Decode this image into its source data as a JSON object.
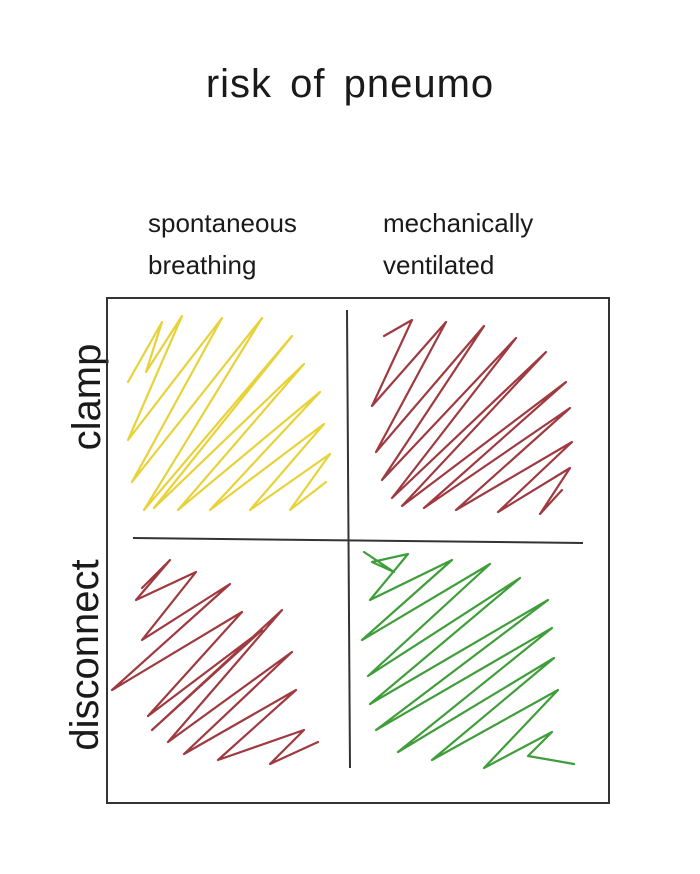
{
  "title": "risk of pneumo",
  "columns": [
    {
      "label": "spontaneous\nbreathing"
    },
    {
      "label": "mechanically\nventilated"
    }
  ],
  "rows": [
    {
      "label": "clamp"
    },
    {
      "label": "disconnect"
    }
  ],
  "cells": [
    {
      "row": "clamp",
      "column": "spontaneous breathing",
      "color": "#e8d23a"
    },
    {
      "row": "clamp",
      "column": "mechanically ventilated",
      "color": "#9e3a40"
    },
    {
      "row": "disconnect",
      "column": "spontaneous breathing",
      "color": "#9e3a40"
    },
    {
      "row": "disconnect",
      "column": "mechanically ventilated",
      "color": "#3f9e3a"
    }
  ]
}
